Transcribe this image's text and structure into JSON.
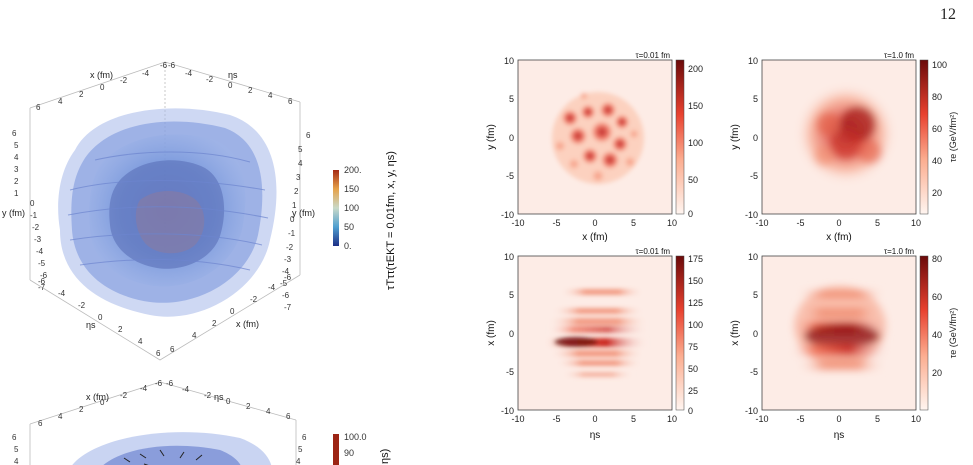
{
  "page_number": "12",
  "left_top": {
    "axis_x_top": "x (fm)",
    "axis_eta_top": "ηs",
    "axis_y_left": "y (fm)",
    "axis_y_right": "y (fm)",
    "axis_eta_bottom": "ηs",
    "axis_x_bottom": "x (fm)",
    "ticks_top_x": [
      "6",
      "4",
      "2",
      "0",
      "-2",
      "-4",
      "-6"
    ],
    "ticks_top_eta": [
      "-6",
      "-4",
      "-2",
      "0",
      "2",
      "4",
      "6"
    ],
    "ticks_left_y": [
      "6",
      "5",
      "4",
      "3",
      "2",
      "1",
      "0",
      "-1",
      "-2",
      "-3",
      "-4",
      "-5",
      "-6",
      "-7"
    ],
    "ticks_right_y": [
      "6",
      "5",
      "4",
      "3",
      "2",
      "1",
      "0",
      "-1",
      "-2",
      "-3",
      "-4",
      "-5",
      "-6",
      "-7"
    ],
    "ticks_bottom_eta": [
      "-6",
      "-4",
      "-2",
      "0",
      "2",
      "4",
      "6"
    ],
    "ticks_bottom_x": [
      "6",
      "4",
      "2",
      "0",
      "-2",
      "-4",
      "-6"
    ],
    "colorbar_ticks": [
      "200.",
      "150",
      "100",
      "50",
      "0."
    ],
    "colorbar_label": "τTττ(τEKT = 0.01fm, x, y, ηs)"
  },
  "left_bottom": {
    "axis_x_top": "x (fm)",
    "axis_eta_top": "ηs",
    "ticks_top_x": [
      "6",
      "4",
      "2",
      "0",
      "-2",
      "-4",
      "-6"
    ],
    "ticks_top_eta": [
      "-6",
      "-4",
      "-2",
      "0",
      "2",
      "4",
      "6"
    ],
    "ticks_left": [
      "6",
      "5",
      "4"
    ],
    "ticks_right": [
      "6",
      "5",
      "4"
    ],
    "colorbar_ticks": [
      "100.0",
      "90"
    ],
    "colorbar_label": "ηs)"
  },
  "heatmaps": [
    {
      "title": "τ=0.01 fm",
      "xlabel": "x (fm)",
      "ylabel": "y (fm)",
      "xticks": [
        "-10",
        "-5",
        "0",
        "5",
        "10"
      ],
      "yticks": [
        "10",
        "5",
        "0",
        "-5",
        "-10"
      ],
      "cb_ticks": [
        "200",
        "150",
        "100",
        "50",
        "0"
      ],
      "cb_label": ""
    },
    {
      "title": "τ=1.0 fm",
      "xlabel": "x (fm)",
      "ylabel": "y (fm)",
      "xticks": [
        "-10",
        "-5",
        "0",
        "5",
        "10"
      ],
      "yticks": [
        "10",
        "5",
        "0",
        "-5",
        "-10"
      ],
      "cb_ticks": [
        "100",
        "80",
        "60",
        "40",
        "20"
      ],
      "cb_label": "τe (GeV/fm²)"
    },
    {
      "title": "τ=0.01 fm",
      "xlabel": "ηs",
      "ylabel": "x (fm)",
      "xticks": [
        "-10",
        "-5",
        "0",
        "5",
        "10"
      ],
      "yticks": [
        "10",
        "5",
        "0",
        "-5",
        "-10"
      ],
      "cb_ticks": [
        "175",
        "150",
        "125",
        "100",
        "75",
        "50",
        "25",
        "0"
      ],
      "cb_label": ""
    },
    {
      "title": "τ=1.0 fm",
      "xlabel": "ηs",
      "ylabel": "x (fm)",
      "xticks": [
        "-10",
        "-5",
        "0",
        "5",
        "10"
      ],
      "yticks": [
        "10",
        "5",
        "0",
        "-5",
        "-10"
      ],
      "cb_ticks": [
        "80",
        "60",
        "40",
        "20"
      ],
      "cb_label": "τe (GeV/fm²)"
    }
  ],
  "colors": {
    "blue_surface": "#5c7fd0",
    "heat_dark": "#7f0a0a",
    "heat_mid": "#e0463a",
    "heat_light": "#fdece6"
  }
}
